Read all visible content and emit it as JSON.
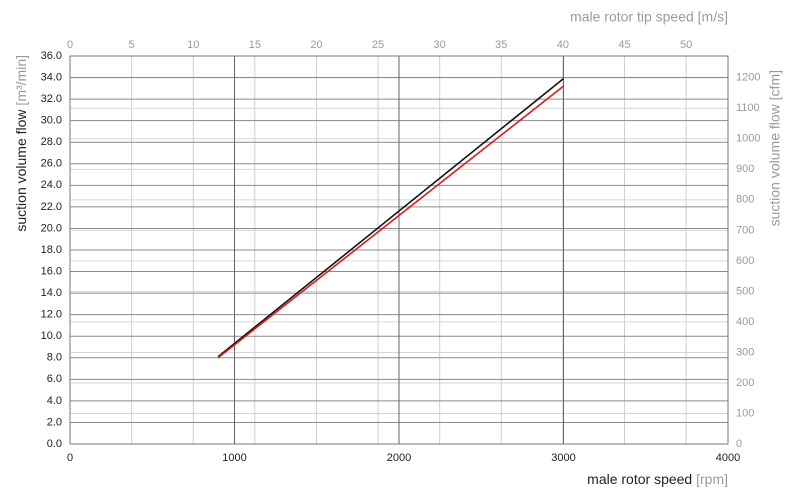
{
  "chart_data": {
    "type": "line",
    "x_label": "male rotor speed",
    "x_label_unit": "[rpm]",
    "x2_label": "male rotor tip speed [m/s]",
    "y_label": "suction volume flow",
    "y_label_unit": "[m³/min]",
    "y2_label": "suction volume flow [cfm]",
    "xlim": [
      0,
      4000
    ],
    "xticks": [
      0,
      1000,
      2000,
      3000,
      4000
    ],
    "x2lim": [
      0,
      53.4
    ],
    "x2ticks": [
      0,
      5,
      10,
      15,
      20,
      25,
      30,
      35,
      40,
      45,
      50
    ],
    "ylim": [
      0,
      36
    ],
    "yticks": [
      {
        "value": 0,
        "label": "0.0"
      },
      {
        "value": 2,
        "label": "2.0"
      },
      {
        "value": 4,
        "label": "4.0"
      },
      {
        "value": 6,
        "label": "6.0"
      },
      {
        "value": 8,
        "label": "8.0"
      },
      {
        "value": 10,
        "label": "10.0"
      },
      {
        "value": 12,
        "label": "12.0"
      },
      {
        "value": 14,
        "label": "14.0"
      },
      {
        "value": 16,
        "label": "16.0"
      },
      {
        "value": 18,
        "label": "18.0"
      },
      {
        "value": 20,
        "label": "20.0"
      },
      {
        "value": 22,
        "label": "22.0"
      },
      {
        "value": 24,
        "label": "24.0"
      },
      {
        "value": 26,
        "label": "26.0"
      },
      {
        "value": 28,
        "label": "28.0"
      },
      {
        "value": 30,
        "label": "30.0"
      },
      {
        "value": 32,
        "label": "32.0"
      },
      {
        "value": 34,
        "label": "34.0"
      },
      {
        "value": 36,
        "label": "36.0"
      }
    ],
    "y2lim": [
      0,
      1271.3
    ],
    "y2ticks": [
      0,
      100,
      200,
      300,
      400,
      500,
      600,
      700,
      800,
      900,
      1000,
      1100,
      1200
    ],
    "grid": true,
    "series": [
      {
        "color": "#111111",
        "x": [
          900,
          3000
        ],
        "values": [
          8.1,
          33.9
        ]
      },
      {
        "color": "#e01818",
        "x": [
          900,
          3000
        ],
        "values": [
          8.0,
          33.2
        ]
      }
    ]
  }
}
